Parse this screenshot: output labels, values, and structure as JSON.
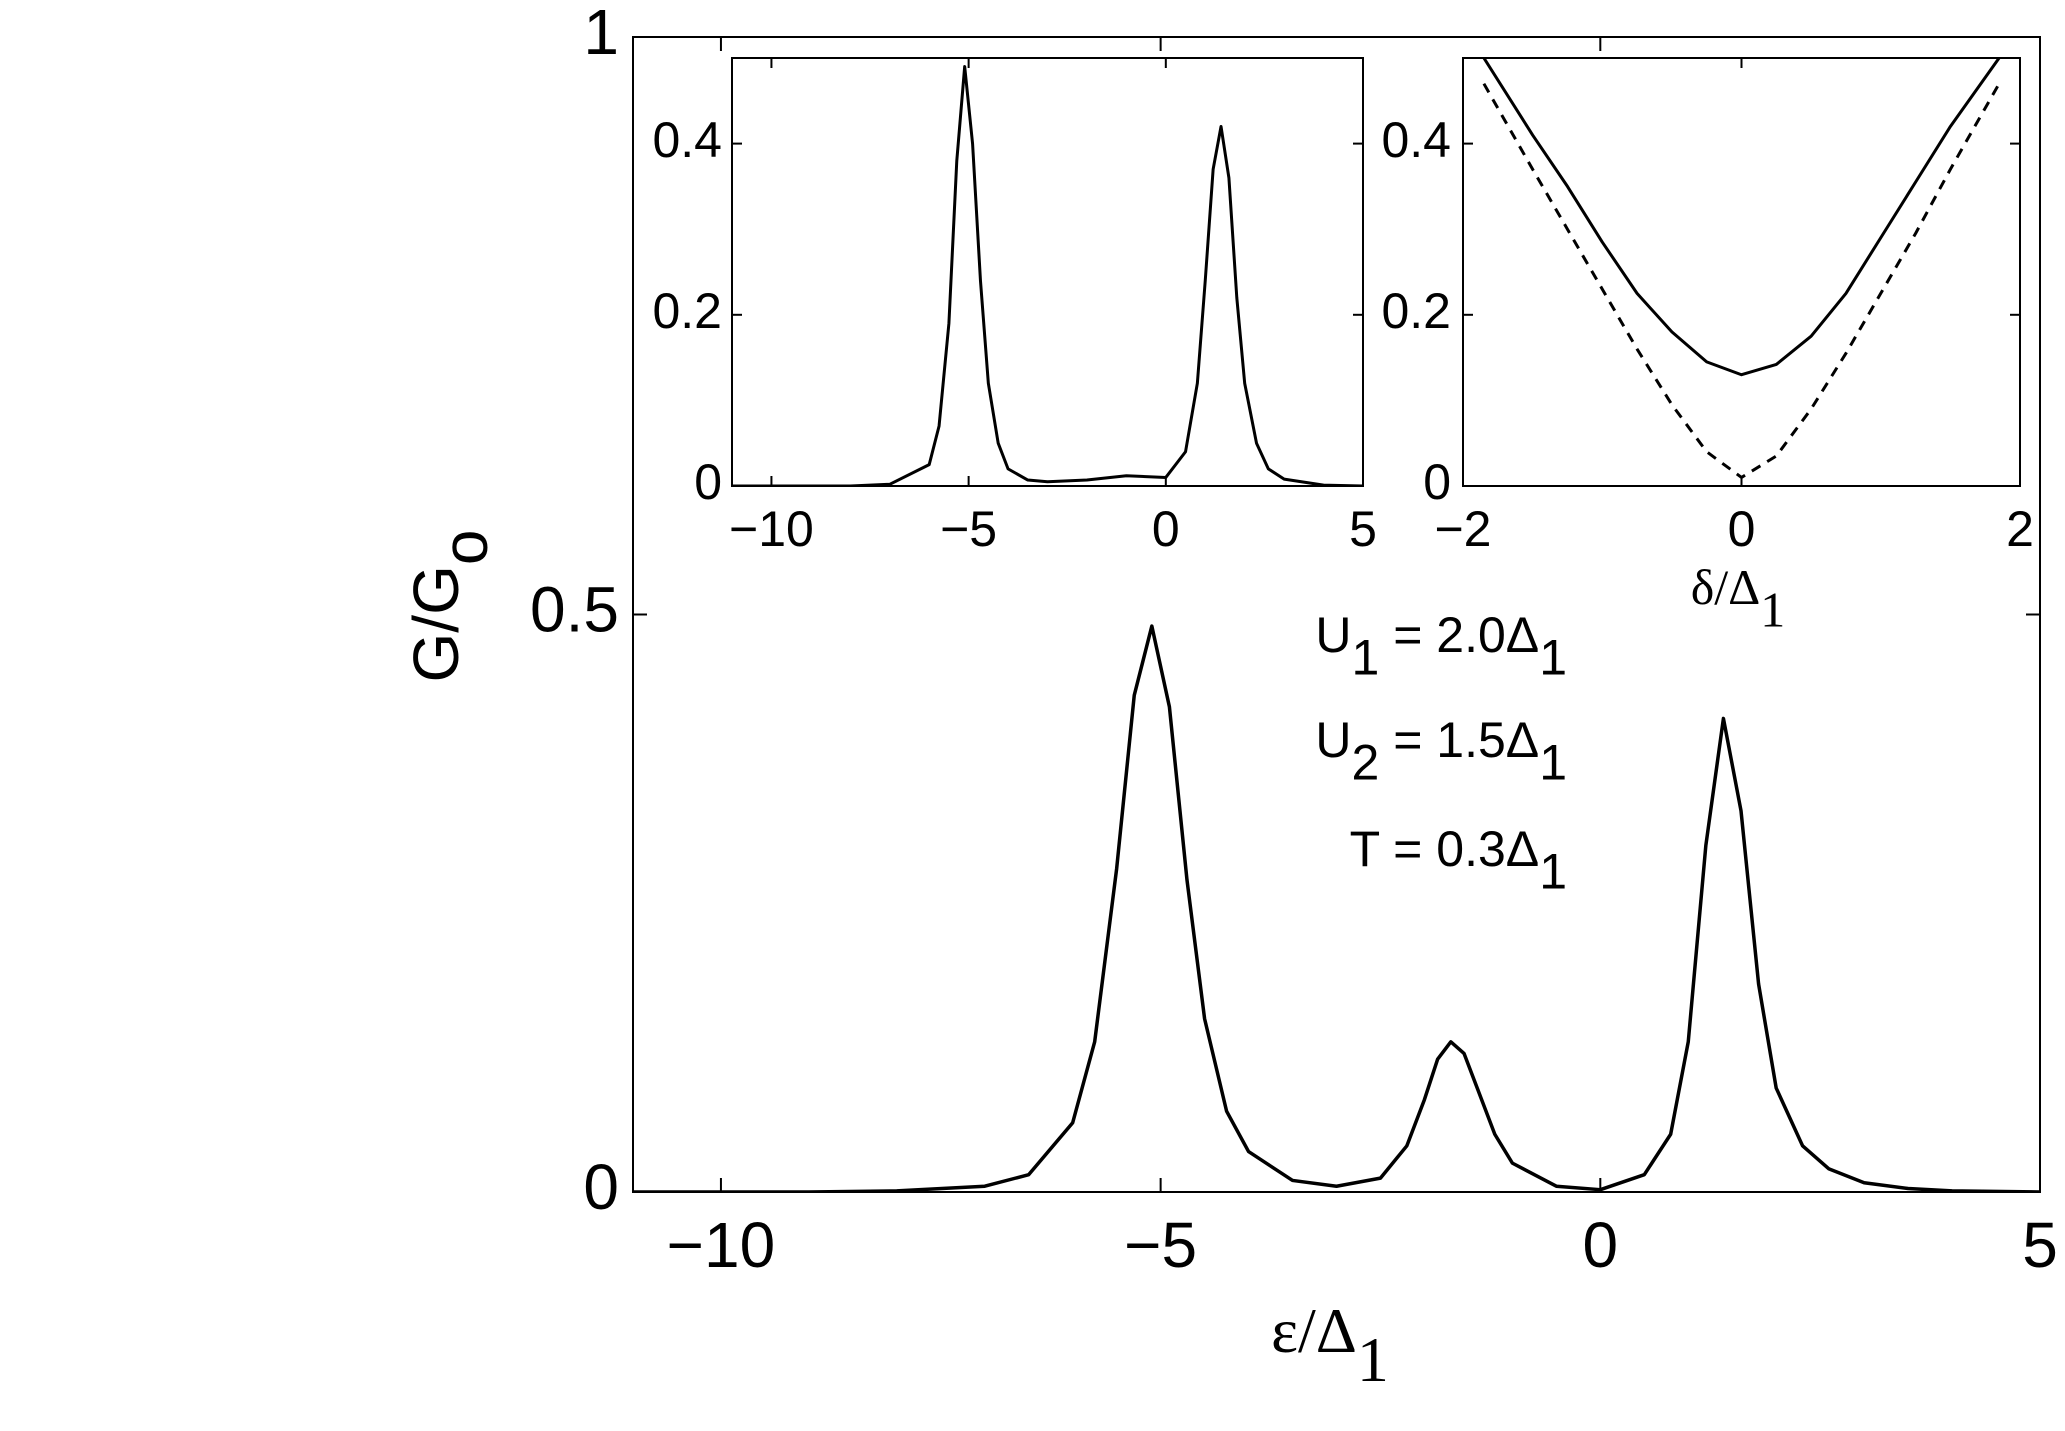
{
  "chart_data": [
    {
      "type": "line",
      "xlabel": [
        "ε/Δ",
        "1"
      ],
      "ylabel": [
        "G/G",
        "o"
      ],
      "annotations": [
        [
          "U",
          "1",
          " = 2.0Δ",
          "1"
        ],
        [
          "U",
          "2",
          " = 1.5Δ",
          "1"
        ],
        [
          "T = 0.3Δ",
          "1"
        ]
      ],
      "xlim": [
        -11,
        5
      ],
      "ylim": [
        0,
        1
      ],
      "xticks": [
        {
          "value": -10,
          "label": "−10"
        },
        {
          "value": -5,
          "label": "−5"
        },
        0,
        5
      ],
      "yticks": [
        0,
        0.5,
        1
      ],
      "x": [
        -11,
        -10,
        -9,
        -8,
        -7,
        -6.5,
        -6,
        -5.75,
        -5.5,
        -5.3,
        -5.1,
        -4.9,
        -4.7,
        -4.5,
        -4.25,
        -4,
        -3.5,
        -3,
        -2.5,
        -2.2,
        -2,
        -1.85,
        -1.7,
        -1.55,
        -1.4,
        -1.2,
        -1,
        -0.5,
        0,
        0.5,
        0.8,
        1,
        1.2,
        1.4,
        1.6,
        1.8,
        2,
        2.3,
        2.6,
        3,
        3.5,
        4,
        5
      ],
      "series": [
        {
          "color": "#000000",
          "dash": false,
          "values": [
            0,
            0,
            0,
            0.001,
            0.005,
            0.015,
            0.06,
            0.13,
            0.28,
            0.43,
            0.49,
            0.42,
            0.27,
            0.15,
            0.07,
            0.035,
            0.01,
            0.005,
            0.012,
            0.04,
            0.08,
            0.115,
            0.13,
            0.12,
            0.09,
            0.05,
            0.025,
            0.005,
            0.002,
            0.015,
            0.05,
            0.13,
            0.3,
            0.41,
            0.33,
            0.18,
            0.09,
            0.04,
            0.02,
            0.008,
            0.003,
            0.001,
            0
          ]
        }
      ]
    },
    {
      "type": "line",
      "xlim": [
        -11,
        5
      ],
      "ylim": [
        0,
        0.5
      ],
      "xticks": [
        {
          "value": -10,
          "label": "−10"
        },
        {
          "value": -5,
          "label": "−5"
        },
        0,
        5
      ],
      "yticks": [
        0,
        0.2,
        0.4
      ],
      "x": [
        -11,
        -10,
        -8,
        -7,
        -6,
        -5.75,
        -5.5,
        -5.3,
        -5.1,
        -4.9,
        -4.7,
        -4.5,
        -4.25,
        -4,
        -3.5,
        -3,
        -2,
        -1,
        0,
        0.5,
        0.8,
        1,
        1.2,
        1.4,
        1.6,
        1.8,
        2,
        2.3,
        2.6,
        3,
        4,
        5
      ],
      "series": [
        {
          "color": "#000000",
          "dash": false,
          "values": [
            0,
            0,
            0,
            0.002,
            0.025,
            0.07,
            0.19,
            0.38,
            0.49,
            0.4,
            0.24,
            0.12,
            0.05,
            0.02,
            0.007,
            0.005,
            0.007,
            0.012,
            0.01,
            0.04,
            0.12,
            0.24,
            0.37,
            0.42,
            0.36,
            0.22,
            0.12,
            0.05,
            0.02,
            0.008,
            0.001,
            0
          ]
        }
      ]
    },
    {
      "type": "line",
      "xlabel": [
        "δ/Δ",
        "1"
      ],
      "xlim": [
        -2,
        2
      ],
      "ylim": [
        0,
        0.5
      ],
      "xticks": [
        {
          "value": -2,
          "label": "−2"
        },
        0,
        2
      ],
      "yticks": [
        0,
        0.2,
        0.4
      ],
      "x": [
        -1.85,
        -1.5,
        -1.25,
        -1,
        -0.75,
        -0.5,
        -0.25,
        0,
        0.25,
        0.5,
        0.75,
        1,
        1.25,
        1.5,
        1.85
      ],
      "series": [
        {
          "color": "#000000",
          "dash": false,
          "values": [
            0.5,
            0.41,
            0.35,
            0.285,
            0.225,
            0.18,
            0.145,
            0.13,
            0.142,
            0.175,
            0.225,
            0.29,
            0.355,
            0.42,
            0.5
          ]
        },
        {
          "color": "#000000",
          "dash": true,
          "values": [
            0.47,
            0.37,
            0.3,
            0.23,
            0.16,
            0.095,
            0.04,
            0.01,
            0.035,
            0.09,
            0.155,
            0.225,
            0.295,
            0.37,
            0.47
          ]
        }
      ]
    }
  ]
}
